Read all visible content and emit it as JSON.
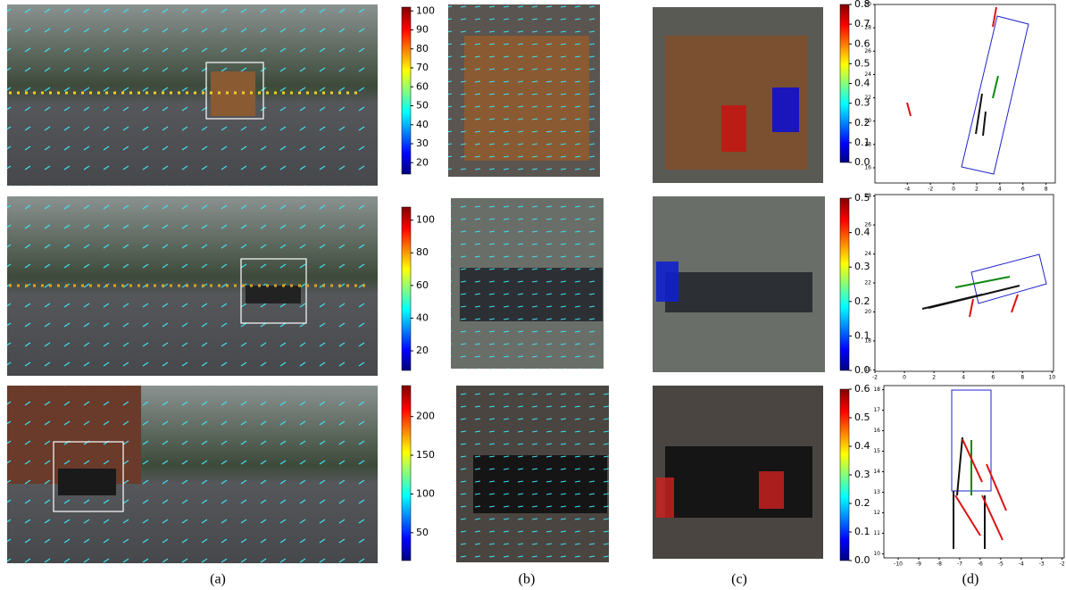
{
  "rows": [
    {
      "colorbar_a": {
        "range": [
          14,
          102
        ],
        "ticks": [
          20,
          30,
          40,
          50,
          60,
          70,
          80,
          90,
          100
        ]
      },
      "colorbar_c": {
        "range": [
          0,
          0.8
        ],
        "ticks": [
          {
            "value": 0,
            "label": "0.0"
          },
          0.1,
          0.2,
          0.3,
          0.4,
          0.5,
          0.6,
          0.7,
          0.8
        ]
      },
      "plot_d": {
        "xlim": [
          -6.8,
          8.8
        ],
        "ylim": [
          14.7,
          30
        ],
        "xticks": [
          -4,
          -2,
          0,
          2,
          4,
          6,
          8
        ],
        "yticks": [
          16,
          18,
          20,
          22,
          24,
          26,
          28,
          30
        ]
      }
    },
    {
      "colorbar_a": {
        "range": [
          8,
          108
        ],
        "ticks": [
          20,
          40,
          60,
          80,
          100
        ]
      },
      "colorbar_c": {
        "range": [
          0,
          0.5
        ],
        "ticks": [
          {
            "value": 0,
            "label": "0.0"
          },
          0.1,
          0.2,
          0.3,
          0.4,
          0.5
        ]
      },
      "plot_d": {
        "xlim": [
          -2,
          10.1
        ],
        "ylim": [
          15.9,
          28.1
        ],
        "xticks": [
          -2,
          0,
          2,
          4,
          6,
          8,
          10
        ],
        "yticks": [
          16,
          18,
          20,
          22,
          24,
          26,
          28
        ]
      }
    },
    {
      "colorbar_a": {
        "range": [
          14,
          240
        ],
        "ticks": [
          50,
          100,
          150,
          200
        ]
      },
      "colorbar_c": {
        "range": [
          0,
          0.6
        ],
        "ticks": [
          {
            "value": 0,
            "label": "0.0"
          },
          0.1,
          0.2,
          0.3,
          0.4,
          0.5,
          0.6
        ]
      },
      "plot_d": {
        "xlim": [
          -10.7,
          -1.9
        ],
        "ylim": [
          9.8,
          18.2
        ],
        "xticks": [
          -10,
          -9,
          -8,
          -7,
          -6,
          -5,
          -4,
          -3,
          -2
        ],
        "yticks": [
          10,
          11,
          12,
          13,
          14,
          15,
          16,
          17,
          18
        ]
      }
    }
  ],
  "captions": [
    "(a)",
    "(b)",
    "(c)",
    "(d)"
  ]
}
